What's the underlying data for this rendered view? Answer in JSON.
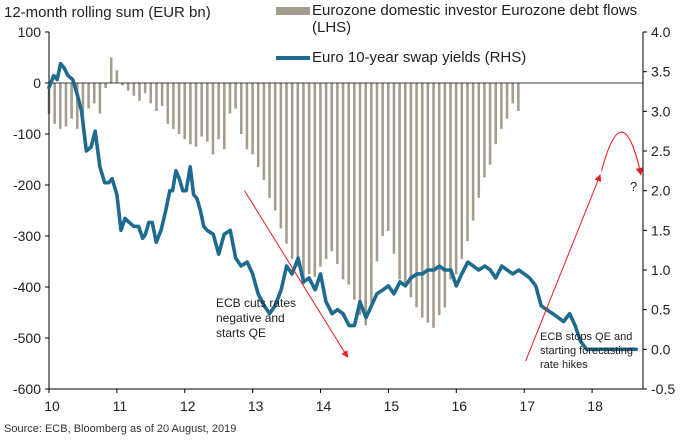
{
  "chart_data": {
    "type": "bar+line",
    "title": "12-month rolling sum (EUR bn)",
    "source": "Source: ECB, Bloomberg as of 20 August, 2019",
    "xlim": [
      10,
      18.75
    ],
    "x_ticks": [
      "10",
      "11",
      "12",
      "13",
      "14",
      "15",
      "16",
      "17",
      "18"
    ],
    "y_left": {
      "lim": [
        -600,
        100
      ],
      "ticks": [
        "100",
        "0",
        "-100",
        "-200",
        "-300",
        "-400",
        "-500",
        "-600"
      ]
    },
    "y_right": {
      "lim": [
        -0.5,
        4.0
      ],
      "ticks": [
        "4.0",
        "3.5",
        "3.0",
        "2.5",
        "2.0",
        "1.5",
        "1.0",
        "0.5",
        "0.0",
        "-0.5"
      ]
    },
    "grid": false,
    "legend": [
      {
        "label": "Eurozone domestic investor Eurozone debt flows (LHS)",
        "kind": "bar",
        "color": "#a49c8d"
      },
      {
        "label": "Euro 10-year swap yields (RHS)",
        "kind": "line",
        "color": "#1f6b8f"
      }
    ],
    "series": [
      {
        "name": "Eurozone domestic investor Eurozone debt flows (LHS)",
        "axis": "left",
        "type": "bar",
        "x_start": 10.0,
        "x_step": 0.0833,
        "values": [
          -60,
          -80,
          -90,
          -85,
          -70,
          -90,
          -60,
          -50,
          -40,
          -60,
          -10,
          50,
          25,
          -5,
          -15,
          -25,
          -35,
          -20,
          -40,
          -55,
          -45,
          -80,
          -90,
          -100,
          -110,
          -120,
          -125,
          -105,
          -115,
          -140,
          -110,
          -130,
          -60,
          -50,
          -100,
          -130,
          -140,
          -165,
          -190,
          -225,
          -250,
          -285,
          -315,
          -345,
          -360,
          -395,
          -375,
          -380,
          -360,
          -345,
          -330,
          -355,
          -385,
          -395,
          -425,
          -455,
          -475,
          -430,
          -350,
          -300,
          -290,
          -335,
          -385,
          -400,
          -420,
          -440,
          -460,
          -470,
          -480,
          -455,
          -440,
          -385,
          -375,
          -345,
          -310,
          -270,
          -225,
          -185,
          -160,
          -120,
          -90,
          -70,
          -40,
          -55
        ]
      },
      {
        "name": "Euro 10-year swap yields (RHS)",
        "axis": "right",
        "type": "line",
        "x": [
          10.0,
          10.07,
          10.12,
          10.17,
          10.22,
          10.28,
          10.35,
          10.42,
          10.48,
          10.55,
          10.62,
          10.68,
          10.75,
          10.82,
          10.88,
          10.93,
          11.0,
          11.06,
          11.12,
          11.18,
          11.25,
          11.32,
          11.38,
          11.42,
          11.47,
          11.52,
          11.58,
          11.65,
          11.72,
          11.78,
          11.82,
          11.87,
          11.92,
          11.97,
          12.02,
          12.08,
          12.13,
          12.18,
          12.23,
          12.28,
          12.33,
          12.42,
          12.5,
          12.58,
          12.67,
          12.75,
          12.83,
          12.92,
          13.0,
          13.08,
          13.17,
          13.25,
          13.33,
          13.42,
          13.5,
          13.58,
          13.67,
          13.75,
          13.83,
          13.92,
          14.0,
          14.08,
          14.17,
          14.25,
          14.33,
          14.42,
          14.5,
          14.58,
          14.67,
          14.75,
          14.83,
          14.92,
          15.0,
          15.08,
          15.17,
          15.25,
          15.33,
          15.42,
          15.5,
          15.58,
          15.67,
          15.75,
          15.83,
          15.92,
          16.0,
          16.08,
          16.17,
          16.25,
          16.33,
          16.42,
          16.5,
          16.58,
          16.67,
          16.75,
          16.83,
          16.92,
          17.0,
          17.08,
          17.17,
          17.25,
          17.33,
          17.42,
          17.5,
          17.58,
          17.67,
          17.75,
          17.83,
          17.92,
          18.0,
          18.08,
          18.17,
          18.25,
          18.33,
          18.42,
          18.5,
          18.58,
          18.65
        ],
        "values": [
          3.3,
          3.45,
          3.4,
          3.6,
          3.55,
          3.45,
          3.4,
          3.2,
          3.0,
          2.5,
          2.55,
          2.75,
          2.3,
          2.1,
          2.1,
          2.15,
          1.95,
          1.5,
          1.65,
          1.6,
          1.55,
          1.55,
          1.4,
          1.45,
          1.6,
          1.6,
          1.35,
          1.5,
          1.75,
          2.0,
          2.0,
          2.25,
          2.15,
          2.0,
          2.0,
          2.3,
          1.95,
          1.9,
          1.75,
          1.55,
          1.5,
          1.45,
          1.2,
          1.45,
          1.5,
          1.15,
          1.05,
          1.1,
          0.95,
          0.7,
          0.55,
          0.45,
          0.55,
          0.75,
          1.05,
          0.95,
          1.15,
          0.85,
          0.9,
          0.75,
          0.95,
          0.6,
          0.45,
          0.5,
          0.45,
          0.3,
          0.3,
          0.6,
          0.4,
          0.55,
          0.7,
          0.75,
          0.8,
          0.7,
          0.85,
          0.8,
          0.9,
          0.95,
          0.95,
          1.0,
          1.0,
          1.05,
          1.0,
          1.0,
          0.8,
          0.95,
          1.1,
          1.05,
          1.0,
          1.05,
          1.0,
          0.9,
          1.05,
          1.0,
          0.95,
          1.0,
          0.95,
          0.9,
          0.8,
          0.55,
          0.5,
          0.45,
          0.4,
          0.35,
          0.45,
          0.3,
          0.1,
          0.0,
          0.0,
          0.0,
          0.0,
          0.0,
          0.0,
          0.0,
          0.0,
          0.0,
          0.0
        ]
      }
    ],
    "annotations": {
      "left_note": "ECB cuts rates negative and starts QE",
      "right_note": "ECB stops QE and starting forecasting rate hikes",
      "question": "?"
    }
  }
}
